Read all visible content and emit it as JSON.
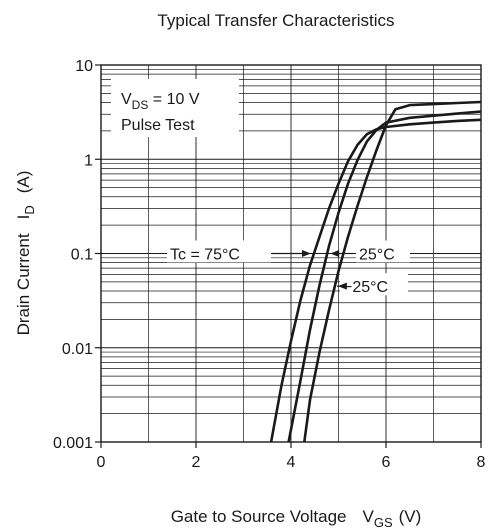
{
  "chart_data": {
    "type": "line",
    "title": "Typical Transfer Characteristics",
    "xlabel": {
      "main": "Gate to Source Voltage",
      "symbol": "V",
      "sub": "GS",
      "unit": "(V)"
    },
    "ylabel": {
      "main": "Drain Current",
      "symbol": "I",
      "sub": "D",
      "unit": "(A)"
    },
    "xlim": [
      0,
      8
    ],
    "ylim": [
      0.001,
      10
    ],
    "yscale": "log",
    "grid": true,
    "xticks": [
      "0",
      "2",
      "4",
      "6",
      "8"
    ],
    "yticks": [
      "0.001",
      "0.01",
      "0.1",
      "1",
      "10"
    ],
    "conditions": {
      "line1": {
        "symbol": "V",
        "sub": "DS",
        "rest": " = 10 V"
      },
      "line2": "Pulse Test"
    },
    "series": [
      {
        "name": "Tc = 75°C",
        "x": [
          3.58,
          3.8,
          4.0,
          4.2,
          4.4,
          4.6,
          4.8,
          5.0,
          5.2,
          5.4,
          5.6,
          5.8,
          6.0,
          6.5,
          7.0,
          7.5,
          8.0
        ],
        "y": [
          0.001,
          0.004,
          0.0118,
          0.032,
          0.075,
          0.15,
          0.3,
          0.55,
          0.95,
          1.42,
          1.85,
          2.08,
          2.2,
          2.35,
          2.45,
          2.55,
          2.62
        ]
      },
      {
        "name": "25°C",
        "x": [
          3.95,
          4.2,
          4.4,
          4.6,
          4.8,
          5.0,
          5.2,
          5.4,
          5.6,
          5.8,
          6.0,
          6.5,
          7.0,
          7.5,
          8.0
        ],
        "y": [
          0.001,
          0.0045,
          0.0155,
          0.046,
          0.12,
          0.27,
          0.55,
          0.98,
          1.55,
          2.05,
          2.45,
          2.75,
          2.9,
          3.05,
          3.2
        ]
      },
      {
        "name": "−25°C",
        "x": [
          4.28,
          4.4,
          4.6,
          4.8,
          5.0,
          5.2,
          5.4,
          5.6,
          5.8,
          6.0,
          6.2,
          6.5,
          7.0,
          7.5,
          8.0
        ],
        "y": [
          0.001,
          0.0028,
          0.009,
          0.025,
          0.065,
          0.15,
          0.32,
          0.65,
          1.25,
          2.3,
          3.4,
          3.75,
          3.85,
          3.95,
          4.05
        ]
      }
    ],
    "annotations": [
      {
        "text": "Tc = 75°C",
        "series": 0,
        "at_y": 0.1,
        "side": "left"
      },
      {
        "text": "25°C",
        "series": 1,
        "at_y": 0.1,
        "side": "right"
      },
      {
        "text": "−25°C",
        "series": 2,
        "at_y": 0.045,
        "side": "right"
      }
    ]
  }
}
